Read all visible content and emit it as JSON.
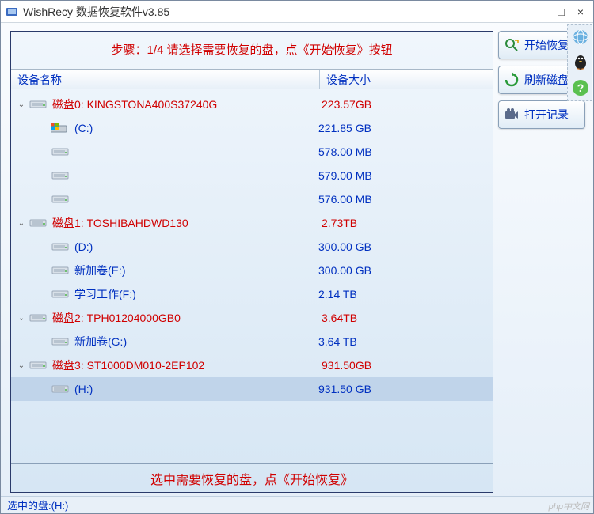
{
  "window": {
    "title": "WishRecy 数据恢复软件v3.85",
    "step_hint": "步骤：1/4 请选择需要恢复的盘，点《开始恢复》按钮",
    "instruction": "选中需要恢复的盘，点《开始恢复》",
    "status_text": "选中的盘:(H:)"
  },
  "columns": {
    "name": "设备名称",
    "size": "设备大小"
  },
  "buttons": {
    "start_recover": "开始恢复",
    "refresh_disk": "刷新磁盘",
    "open_log": "打开记录"
  },
  "colors": {
    "disk_text": "#d00000",
    "vol_text": "#0030c0",
    "selected_bg": "#c0d4ea",
    "border": "#2a3a6a"
  },
  "tree": [
    {
      "type": "disk",
      "label": "磁盘0: KINGSTONA400S37240G",
      "size": "223.57GB",
      "expanded": true
    },
    {
      "type": "vol",
      "label": "(C:)",
      "size": "221.85 GB",
      "os_icon": true
    },
    {
      "type": "vol",
      "label": "",
      "size": "578.00 MB"
    },
    {
      "type": "vol",
      "label": "",
      "size": "579.00 MB"
    },
    {
      "type": "vol",
      "label": "",
      "size": "576.00 MB"
    },
    {
      "type": "disk",
      "label": "磁盘1: TOSHIBAHDWD130",
      "size": "2.73TB",
      "expanded": true
    },
    {
      "type": "vol",
      "label": "(D:)",
      "size": "300.00 GB"
    },
    {
      "type": "vol",
      "label": "新加卷(E:)",
      "size": "300.00 GB"
    },
    {
      "type": "vol",
      "label": "学习工作(F:)",
      "size": "2.14 TB"
    },
    {
      "type": "disk",
      "label": "磁盘2: TPH01204000GB0",
      "size": "3.64TB",
      "expanded": true
    },
    {
      "type": "vol",
      "label": "新加卷(G:)",
      "size": "3.64 TB"
    },
    {
      "type": "disk",
      "label": "磁盘3: ST1000DM010-2EP102",
      "size": "931.50GB",
      "expanded": true
    },
    {
      "type": "vol",
      "label": "(H:)",
      "size": "931.50 GB",
      "selected": true
    }
  ],
  "watermark": "php中文网"
}
